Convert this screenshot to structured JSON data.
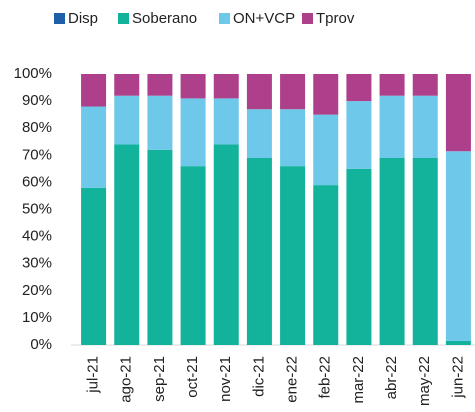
{
  "chart_data": {
    "type": "stacked_bar",
    "categories": [
      "jul-21",
      "ago-21",
      "sep-21",
      "oct-21",
      "nov-21",
      "dic-21",
      "ene-22",
      "feb-22",
      "mar-22",
      "abr-22",
      "may-22",
      "jun-22"
    ],
    "series": [
      {
        "name": "Disp",
        "color": "#1f5fa8",
        "values": [
          0,
          0,
          0,
          0,
          0,
          0,
          0,
          0,
          0,
          0,
          0,
          0
        ]
      },
      {
        "name": "Soberano",
        "color": "#13b29a",
        "values": [
          58,
          74,
          72,
          66,
          74,
          69,
          66,
          59,
          65,
          69,
          69,
          1.5
        ]
      },
      {
        "name": "ON+VCP",
        "color": "#6ec8ea",
        "values": [
          30,
          18,
          20,
          25,
          17,
          18,
          21,
          26,
          25,
          23,
          23,
          70
        ]
      },
      {
        "name": "Tprov",
        "color": "#ad3f8b",
        "values": [
          12,
          8,
          8,
          9,
          9,
          13,
          13,
          15,
          10,
          8,
          8,
          28.5
        ]
      }
    ],
    "ylim": [
      0,
      100
    ],
    "yticks": [
      {
        "value": 0,
        "label": "0%"
      },
      {
        "value": 10,
        "label": "10%"
      },
      {
        "value": 20,
        "label": "20%"
      },
      {
        "value": 30,
        "label": "30%"
      },
      {
        "value": 40,
        "label": "40%"
      },
      {
        "value": 50,
        "label": "50%"
      },
      {
        "value": 60,
        "label": "60%"
      },
      {
        "value": 70,
        "label": "70%"
      },
      {
        "value": 80,
        "label": "80%"
      },
      {
        "value": 90,
        "label": "90%"
      },
      {
        "value": 100,
        "label": "100%"
      }
    ],
    "grid": false,
    "legend": "top"
  }
}
